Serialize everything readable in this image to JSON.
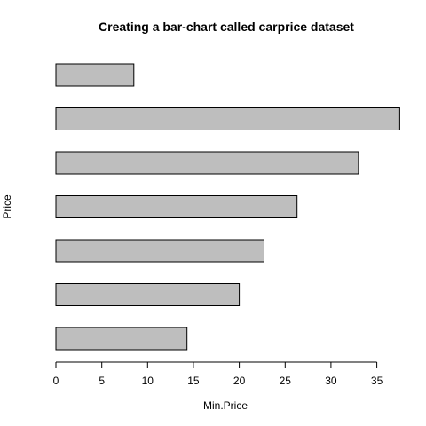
{
  "chart_data": {
    "type": "bar",
    "orientation": "horizontal",
    "title": "Creating a bar-chart called carprice dataset",
    "xlabel": "Min.Price",
    "ylabel": "Price",
    "values": [
      8.5,
      37.5,
      33.0,
      26.3,
      22.7,
      20.0,
      14.3
    ],
    "xlim": [
      0,
      37.5
    ],
    "x_ticks": [
      0,
      5,
      10,
      15,
      20,
      25,
      30,
      35
    ],
    "grid": false,
    "bar_color": "#bebebe",
    "bar_edge_color": "#000000"
  }
}
